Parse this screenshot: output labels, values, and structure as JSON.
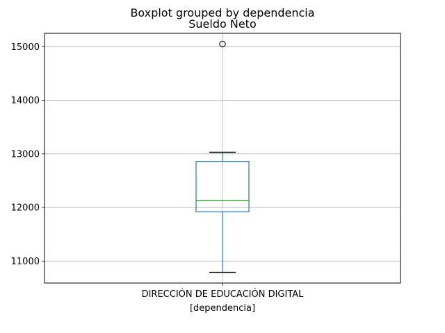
{
  "chart_data": {
    "type": "box",
    "suptitle": "Boxplot grouped by dependencia",
    "title": "Sueldo Neto",
    "categories": [
      "DIRECCIÓN DE EDUCACIÓN DIGITAL"
    ],
    "xlabel": "[dependencia]",
    "ylabel": "",
    "ylim": [
      10590,
      15250
    ],
    "yticks": [
      11000,
      12000,
      13000,
      14000,
      15000
    ],
    "grid": true,
    "boxes": [
      {
        "category": "DIRECCIÓN DE EDUCACIÓN DIGITAL",
        "whisker_low": 10790,
        "q1": 11920,
        "median": 12130,
        "q3": 12860,
        "whisker_high": 13030,
        "outliers": [
          15050
        ]
      }
    ],
    "colors": {
      "box": "#1f77b4",
      "median": "#2ca02c",
      "cap": "#000000",
      "grid": "#b0b0b0",
      "outlier": "#000000"
    }
  }
}
